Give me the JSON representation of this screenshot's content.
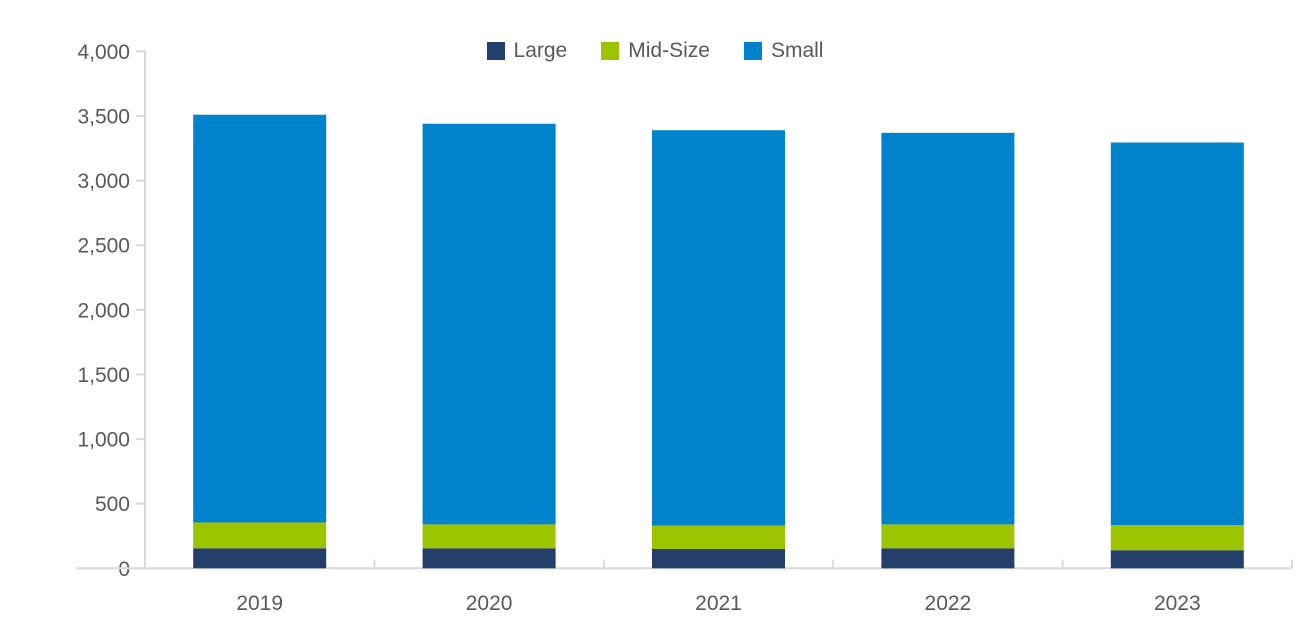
{
  "chart_data": {
    "type": "bar",
    "stacked": true,
    "title": "",
    "xlabel": "",
    "ylabel": "",
    "categories": [
      "2019",
      "2020",
      "2021",
      "2022",
      "2023"
    ],
    "series": [
      {
        "name": "Large",
        "color": "#243F69",
        "values": [
          155,
          155,
          150,
          155,
          140
        ]
      },
      {
        "name": "Mid-Size",
        "color": "#9CC400",
        "values": [
          200,
          185,
          180,
          185,
          195
        ]
      },
      {
        "name": "Small",
        "color": "#0083CA",
        "values": [
          3155,
          3100,
          3060,
          3030,
          2960
        ]
      }
    ],
    "totals": [
      3510,
      3440,
      3390,
      3370,
      3295
    ],
    "ylim": [
      0,
      4000
    ],
    "ytick_step": 500,
    "ytick_labels": [
      "0",
      "500",
      "1,000",
      "1,500",
      "2,000",
      "2,500",
      "3,000",
      "3,500",
      "4,000"
    ],
    "legend_position": "top-center",
    "grid": false
  },
  "colors": {
    "axis_line": "#D9D9D9",
    "axis_text": "#595959",
    "background": "#FFFFFF"
  }
}
